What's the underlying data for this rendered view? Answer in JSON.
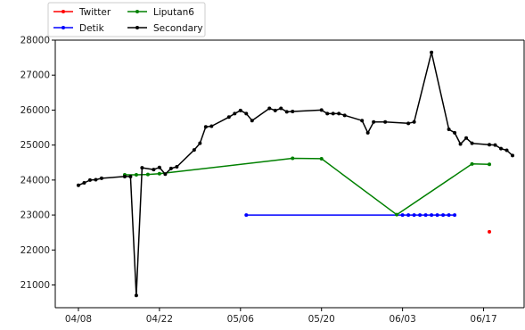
{
  "chart_data": {
    "type": "line",
    "xlabel": "",
    "ylabel": "",
    "title": "",
    "x_axis": {
      "kind": "date",
      "range": [
        "2019-04-04",
        "2019-06-24"
      ],
      "ticks": [
        "2019-04-08",
        "2019-04-22",
        "2019-05-06",
        "2019-05-20",
        "2019-06-03",
        "2019-06-17"
      ],
      "tick_labels": [
        "04/08",
        "04/22",
        "05/06",
        "05/20",
        "06/03",
        "06/17"
      ]
    },
    "y_axis": {
      "range": [
        20350,
        28000
      ],
      "ticks": [
        21000,
        22000,
        23000,
        24000,
        25000,
        26000,
        27000,
        28000
      ],
      "tick_labels": [
        "21000",
        "22000",
        "23000",
        "24000",
        "25000",
        "26000",
        "27000",
        "28000"
      ]
    },
    "grid": false,
    "legend": {
      "placement": "top-left, above plot",
      "columns": 2
    },
    "series": [
      {
        "name": "Twitter",
        "color": "#ff0000",
        "points": [
          [
            "2019-06-18",
            22520
          ]
        ]
      },
      {
        "name": "Detik",
        "color": "#0000ff",
        "points": [
          [
            "2019-05-07",
            23000
          ],
          [
            "2019-06-03",
            23000
          ],
          [
            "2019-06-04",
            23000
          ],
          [
            "2019-06-05",
            23000
          ],
          [
            "2019-06-06",
            23000
          ],
          [
            "2019-06-07",
            23000
          ],
          [
            "2019-06-08",
            23000
          ],
          [
            "2019-06-09",
            23000
          ],
          [
            "2019-06-10",
            23000
          ],
          [
            "2019-06-11",
            23000
          ],
          [
            "2019-06-12",
            23000
          ]
        ]
      },
      {
        "name": "Liputan6",
        "color": "#008000",
        "points": [
          [
            "2019-04-16",
            24150
          ],
          [
            "2019-04-18",
            24150
          ],
          [
            "2019-04-20",
            24160
          ],
          [
            "2019-04-22",
            24180
          ],
          [
            "2019-05-15",
            24620
          ],
          [
            "2019-05-20",
            24610
          ],
          [
            "2019-06-02",
            23010
          ],
          [
            "2019-06-15",
            24460
          ],
          [
            "2019-06-18",
            24450
          ]
        ]
      },
      {
        "name": "Secondary",
        "color": "#000000",
        "points": [
          [
            "2019-04-08",
            23850
          ],
          [
            "2019-04-09",
            23920
          ],
          [
            "2019-04-10",
            24000
          ],
          [
            "2019-04-11",
            24010
          ],
          [
            "2019-04-12",
            24050
          ],
          [
            "2019-04-16",
            24100
          ],
          [
            "2019-04-17",
            24100
          ],
          [
            "2019-04-18",
            20700
          ],
          [
            "2019-04-19",
            24350
          ],
          [
            "2019-04-21",
            24300
          ],
          [
            "2019-04-22",
            24360
          ],
          [
            "2019-04-23",
            24170
          ],
          [
            "2019-04-24",
            24330
          ],
          [
            "2019-04-25",
            24380
          ],
          [
            "2019-04-28",
            24860
          ],
          [
            "2019-04-29",
            25050
          ],
          [
            "2019-04-30",
            25520
          ],
          [
            "2019-05-01",
            25540
          ],
          [
            "2019-05-04",
            25800
          ],
          [
            "2019-05-05",
            25900
          ],
          [
            "2019-05-06",
            25990
          ],
          [
            "2019-05-07",
            25900
          ],
          [
            "2019-05-08",
            25700
          ],
          [
            "2019-05-11",
            26050
          ],
          [
            "2019-05-12",
            25990
          ],
          [
            "2019-05-13",
            26050
          ],
          [
            "2019-05-14",
            25950
          ],
          [
            "2019-05-15",
            25960
          ],
          [
            "2019-05-20",
            26000
          ],
          [
            "2019-05-21",
            25900
          ],
          [
            "2019-05-22",
            25900
          ],
          [
            "2019-05-23",
            25900
          ],
          [
            "2019-05-24",
            25850
          ],
          [
            "2019-05-27",
            25700
          ],
          [
            "2019-05-28",
            25350
          ],
          [
            "2019-05-29",
            25660
          ],
          [
            "2019-05-31",
            25660
          ],
          [
            "2019-06-04",
            25620
          ],
          [
            "2019-06-05",
            25660
          ],
          [
            "2019-06-08",
            27650
          ],
          [
            "2019-06-11",
            25450
          ],
          [
            "2019-06-12",
            25350
          ],
          [
            "2019-06-13",
            25030
          ],
          [
            "2019-06-14",
            25200
          ],
          [
            "2019-06-15",
            25050
          ],
          [
            "2019-06-18",
            25010
          ],
          [
            "2019-06-19",
            25000
          ],
          [
            "2019-06-20",
            24900
          ],
          [
            "2019-06-21",
            24850
          ],
          [
            "2019-06-22",
            24700
          ]
        ]
      }
    ]
  }
}
